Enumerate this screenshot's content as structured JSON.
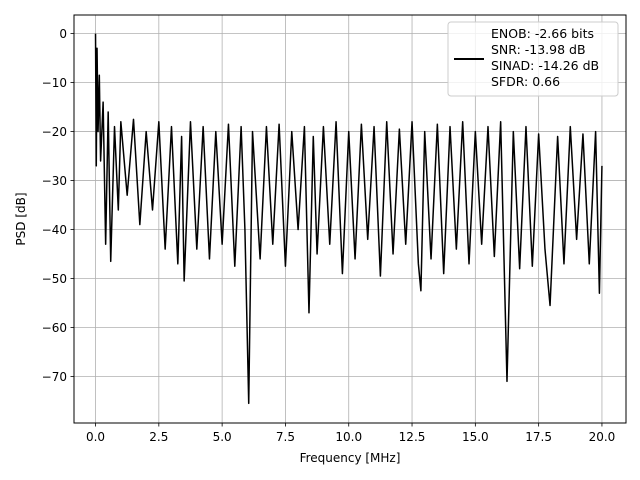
{
  "chart_data": {
    "type": "line",
    "title": "",
    "xlabel": "Frequency [MHz]",
    "ylabel": "PSD [dB]",
    "xlim": [
      -0.85,
      20.95
    ],
    "ylim": [
      -79.5,
      3.8
    ],
    "x_ticks": [
      0.0,
      2.5,
      5.0,
      7.5,
      10.0,
      12.5,
      15.0,
      17.5,
      20.0
    ],
    "x_tick_labels": [
      "0.0",
      "2.5",
      "5.0",
      "7.5",
      "10.0",
      "12.5",
      "15.0",
      "17.5",
      "20.0"
    ],
    "y_ticks": [
      0,
      -10,
      -20,
      -30,
      -40,
      -50,
      -60,
      -70
    ],
    "y_tick_labels": [
      "0",
      "−10",
      "−20",
      "−30",
      "−40",
      "−50",
      "−60",
      "−70"
    ],
    "grid": true,
    "legend_position": "top-right",
    "legend_lines": [
      "ENOB: -2.66 bits",
      "SNR: -13.98 dB",
      "SINAD: -14.26 dB",
      "SFDR: 0.66"
    ],
    "series": [
      {
        "color": "#000000",
        "x": [
          0.0,
          0.03,
          0.06,
          0.1,
          0.15,
          0.2,
          0.3,
          0.4,
          0.5,
          0.6,
          0.75,
          0.9,
          1.0,
          1.25,
          1.5,
          1.75,
          2.0,
          2.25,
          2.5,
          2.75,
          3.0,
          3.25,
          3.4,
          3.5,
          3.75,
          4.0,
          4.25,
          4.5,
          4.75,
          5.0,
          5.25,
          5.5,
          5.75,
          5.9,
          6.05,
          6.2,
          6.5,
          6.75,
          7.0,
          7.25,
          7.5,
          7.75,
          8.0,
          8.25,
          8.43,
          8.6,
          8.75,
          9.0,
          9.25,
          9.5,
          9.75,
          10.0,
          10.25,
          10.5,
          10.75,
          11.0,
          11.25,
          11.5,
          11.75,
          12.0,
          12.25,
          12.5,
          12.75,
          12.85,
          13.0,
          13.25,
          13.5,
          13.75,
          14.0,
          14.25,
          14.5,
          14.75,
          15.0,
          15.25,
          15.5,
          15.75,
          16.0,
          16.25,
          16.5,
          16.75,
          17.0,
          17.25,
          17.5,
          17.75,
          17.95,
          18.25,
          18.5,
          18.75,
          19.0,
          19.25,
          19.5,
          19.75,
          19.9,
          20.0
        ],
        "y": [
          0.0,
          -27.0,
          -3.0,
          -20.0,
          -8.5,
          -26.0,
          -14.0,
          -43.0,
          -16.0,
          -46.5,
          -19.0,
          -36.0,
          -18.0,
          -33.0,
          -17.5,
          -39.0,
          -20.0,
          -36.0,
          -18.0,
          -44.0,
          -19.0,
          -47.0,
          -21.0,
          -50.5,
          -18.0,
          -44.0,
          -19.0,
          -46.0,
          -20.0,
          -43.0,
          -18.5,
          -47.5,
          -19.0,
          -40.0,
          -75.5,
          -20.0,
          -46.0,
          -19.0,
          -43.0,
          -18.5,
          -47.5,
          -20.0,
          -40.0,
          -19.0,
          -57.0,
          -21.0,
          -45.0,
          -19.0,
          -43.0,
          -18.0,
          -49.0,
          -20.0,
          -46.0,
          -18.5,
          -42.0,
          -19.0,
          -49.5,
          -18.0,
          -45.0,
          -19.5,
          -43.0,
          -18.0,
          -47.0,
          -52.5,
          -20.0,
          -46.0,
          -18.5,
          -49.0,
          -19.0,
          -44.0,
          -18.0,
          -47.0,
          -20.0,
          -43.0,
          -19.0,
          -45.5,
          -18.0,
          -71.0,
          -20.0,
          -48.0,
          -19.0,
          -47.5,
          -20.5,
          -44.0,
          -55.5,
          -21.0,
          -47.0,
          -19.0,
          -42.0,
          -20.5,
          -47.0,
          -20.0,
          -53.0,
          -27.0
        ]
      }
    ]
  }
}
